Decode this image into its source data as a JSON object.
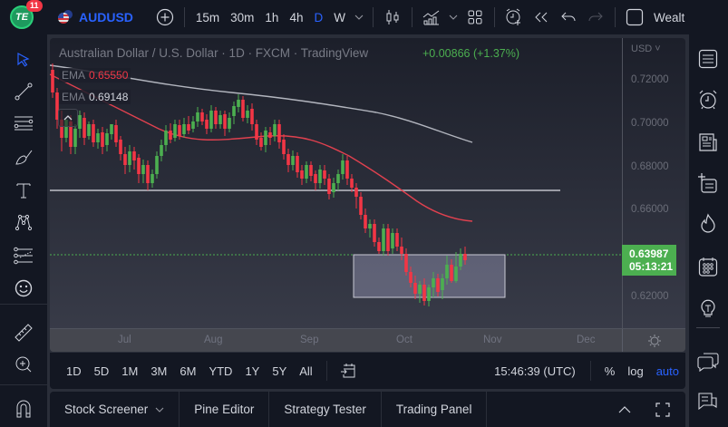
{
  "topbar": {
    "logo_text": "TE",
    "notification_count": "11",
    "symbol": "AUDUSD",
    "timeframes": [
      "15m",
      "30m",
      "1h",
      "4h",
      "D",
      "W"
    ],
    "active_timeframe": "D",
    "cutoff_label": "Wealt",
    "icons": [
      "plus-circle-icon",
      "chevron-down-icon",
      "candles-icon",
      "indicators-icon",
      "chevron-down-icon",
      "layout-grid-icon",
      "alarm-plus-icon",
      "replay-icon",
      "undo-icon",
      "redo-icon",
      "square-icon"
    ]
  },
  "left_toolbar": {
    "tools": [
      "cursor",
      "trend-line",
      "fib-retracement",
      "brush",
      "text",
      "pattern",
      "prediction",
      "emoji",
      "ruler",
      "zoom-in",
      "magnet"
    ]
  },
  "chart": {
    "title": "Australian Dollar / U.S. Dollar · 1D · FXCM · TradingView",
    "change": "+0.00866 (+1.37%)",
    "indicators": [
      {
        "label": "EMA",
        "value": "0.65550",
        "color": "#f23645"
      },
      {
        "label": "EMA",
        "value": "0.69148",
        "color": "#d1d4dc"
      }
    ],
    "currency": "USD",
    "price_labels": [
      "0.72000",
      "0.70000",
      "0.68000",
      "0.66000",
      "0.62000"
    ],
    "last_price": "0.63987",
    "countdown": "05:13:21",
    "time_labels": [
      "Jul",
      "Aug",
      "Sep",
      "Oct",
      "Nov",
      "Dec"
    ],
    "colors": {
      "up": "#4caf50",
      "down": "#f23645",
      "ema_fast": "#e0414f",
      "ema_slow": "#b2b5be",
      "accent": "#2962ff"
    }
  },
  "rangebar": {
    "ranges": [
      "1D",
      "5D",
      "1M",
      "3M",
      "6M",
      "YTD",
      "1Y",
      "5Y",
      "All"
    ],
    "time": "15:46:39 (UTC)",
    "percent": "%",
    "log": "log",
    "auto": "auto"
  },
  "bottom_panel": {
    "tabs": [
      "Stock Screener",
      "Pine Editor",
      "Strategy Tester",
      "Trading Panel"
    ]
  },
  "right_sidebar": {
    "items": [
      "watchlist",
      "alerts",
      "news",
      "add-list",
      "hotlists",
      "calendar",
      "ideas",
      "chats",
      "messages"
    ]
  }
}
